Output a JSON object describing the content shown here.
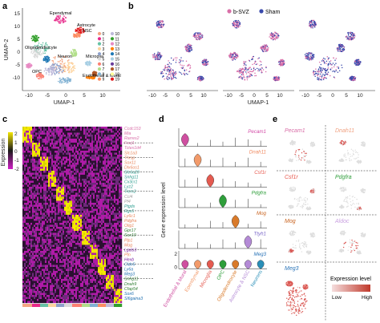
{
  "panels": {
    "a": {
      "letter": "a",
      "xlabel": "UMAP-1",
      "ylabel": "UMAP-2",
      "xticks": [
        "-10",
        "-5",
        "0",
        "5",
        "10"
      ],
      "yticks": [
        "15",
        "10",
        "5",
        "0",
        "-5",
        "-10"
      ],
      "cluster_labels": [
        "Ependymal",
        "Astrocyte",
        "NSC",
        "Oligodendrocyte",
        "Neuron",
        "Microglia",
        "OPC",
        "Endothelial & Mural"
      ],
      "legend": [
        "0",
        "1",
        "2",
        "3",
        "4",
        "5",
        "6",
        "7",
        "8",
        "9",
        "10",
        "11",
        "12",
        "13",
        "14",
        "15",
        "16",
        "17",
        "18",
        "19"
      ],
      "legend_colors": [
        "#f4a582",
        "#e7298a",
        "#66c2a5",
        "#fdd49e",
        "#8da0cb",
        "#d9d9d9",
        "#fb8072",
        "#b2df8a",
        "#80b1d3",
        "#fc8d62",
        "#bebada",
        "#33a02c",
        "#e78ac3",
        "#ff7f00",
        "#1f78b4",
        "#a6cee3",
        "#6a3d9a",
        "#b15928",
        "#ffff99",
        "#e31a1c"
      ]
    },
    "b": {
      "letter": "b",
      "legend": [
        {
          "label": "b-SVZ",
          "color": "#d96fa8"
        },
        {
          "label": "Sham",
          "color": "#3949ab"
        }
      ],
      "xlabel": "UMAP-1",
      "xticks": [
        "-10",
        "-5",
        "0",
        "5",
        "10"
      ],
      "xticks2": [
        "-10",
        "-5",
        "0",
        "5",
        "10"
      ],
      "xticks3": [
        "-10",
        "-5",
        "0",
        "5",
        "10"
      ]
    },
    "c": {
      "letter": "c",
      "colorbar_label": "Expression",
      "colorbar_ticks": [
        "2",
        "1",
        "0",
        "-1",
        "-2"
      ],
      "genes": [
        "Ccdc153",
        "Mia",
        "Rarres2",
        "Foxj1",
        "Tctex1d4",
        "Slc1a3",
        "Thrsp",
        "Sox11",
        "Dlx6os1",
        "Slc6a20",
        "Snhg11",
        "Cx3cr1",
        "Lyz2",
        "Trem2",
        "Ccl4",
        "Pf4",
        "Ptgds",
        "Rgs5",
        "Ly6c1",
        "Pdgfra",
        "Olig1",
        "Gpr17",
        "Sox10",
        "Plp1",
        "Mog",
        "Lgals3",
        "Ptn",
        "Hexb",
        "Cldn5",
        "Ly6a",
        "Meg3",
        "Snhg11",
        "Dnah9",
        "Cfap54",
        "Sox6",
        "Sl6gaina3"
      ],
      "gene_colors": [
        "#d96fa8",
        "#d96fa8",
        "#d96fa8",
        "#d96fa8",
        "#d96fa8",
        "#e8855a",
        "#e8855a",
        "#e8855a",
        "#e8855a",
        "#2a9d8f",
        "#2a9d8f",
        "#2a9d8f",
        "#2a9d8f",
        "#2a9d8f",
        "#a0a0a0",
        "#a0a0a0",
        "#2a9d8f",
        "#2a9d8f",
        "#e8855a",
        "#e8855a",
        "#e8855a",
        "#2e7d32",
        "#2e7d32",
        "#e8855a",
        "#e8855a",
        "#7b1fa2",
        "#e8855a",
        "#7b1fa2",
        "#1e6fb0",
        "#1e6fb0",
        "#1e6fb0",
        "#2e7d32",
        "#2e7d32",
        "#2e7d32",
        "#1e6fb0",
        "#1e6fb0"
      ]
    },
    "d": {
      "letter": "d",
      "ylabel": "Gene expression level",
      "rows": [
        {
          "gene": "Pecam1",
          "color": "#d24aa6"
        },
        {
          "gene": "Dnah11",
          "color": "#f08a60"
        },
        {
          "gene": "Csf1r",
          "color": "#e85a4f"
        },
        {
          "gene": "Pdgfra",
          "color": "#2e9e3a"
        },
        {
          "gene": "Mog",
          "color": "#c8621d"
        },
        {
          "gene": "Ttyh1",
          "color": "#7b68c8"
        },
        {
          "gene": "Meg3",
          "color": "#2a74b8"
        }
      ],
      "yticks": [
        "2",
        "0"
      ],
      "celltypes": [
        "Endothelial & Mural",
        "Ependymal",
        "Microglia",
        "OPC",
        "Oligodendrocyte",
        "Astrocyte & NSC",
        "Neurons"
      ],
      "violin_colors": [
        "#cf4fa0",
        "#f29a6a",
        "#e45a50",
        "#2e9e3a",
        "#d97a2a",
        "#b48ad6",
        "#2a8fb8"
      ],
      "last_row_values": [
        3.2,
        3.2,
        3.2,
        3.2,
        3.2,
        3.2,
        3.2
      ]
    },
    "e": {
      "letter": "e",
      "genes": [
        {
          "gene": "Pecam1",
          "color": "#d96fa8"
        },
        {
          "gene": "Dnah11",
          "color": "#f0a080"
        },
        {
          "gene": "Csf1r",
          "color": "#e85a4f"
        },
        {
          "gene": "Pdgfra",
          "color": "#2e9e3a"
        },
        {
          "gene": "Mog",
          "color": "#c8621d"
        },
        {
          "gene": "Aldoc",
          "color": "#c9a0e0"
        },
        {
          "gene": "Meg3",
          "color": "#2a74b8"
        }
      ],
      "legend_title": "Expression level",
      "legend_low": "Low",
      "legend_high": "High"
    }
  }
}
